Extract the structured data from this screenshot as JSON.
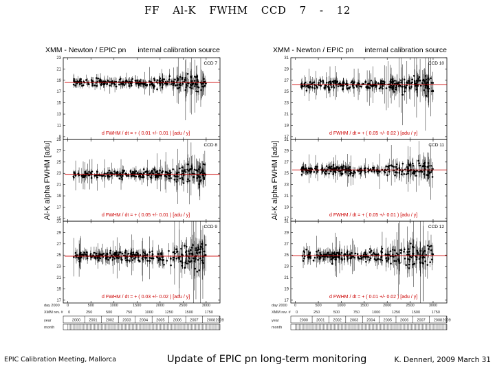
{
  "slide": {
    "title": "FF Al-K FWHM CCD 7 - 12",
    "footer_left": "EPIC Calibration Meeting, Mallorca",
    "footer_center": "Update of EPIC pn long-term monitoring",
    "footer_right": "K. Dennerl, 2009 March 31"
  },
  "colors": {
    "fit_line": "#cc0000",
    "data": "#000000"
  },
  "chart_data": [
    {
      "type": "scatter",
      "title_left": "XMM - Newton / EPIC pn",
      "title_right": "internal calibration source",
      "ylabel": "Al-K alpha FWHM [adu]",
      "xlim": [
        -100,
        3300
      ],
      "x_ticks": [
        "0",
        "500",
        "1000",
        "1500",
        "2000",
        "2500",
        "3000"
      ],
      "x_axis_label": "day 2000",
      "revolution_row_label": "XMM rev. #",
      "revolutions": [
        "0",
        "250",
        "500",
        "750",
        "1000",
        "1250",
        "1500",
        "1750"
      ],
      "year_row_label": "year",
      "years": [
        "2000",
        "2001",
        "2002",
        "2003",
        "2004",
        "2005",
        "2006",
        "2007",
        "2008",
        "2009"
      ],
      "month_row_label": "month",
      "panels": [
        {
          "ccd_label": "CCD 7",
          "y_ticks": [
            "23",
            "21",
            "19",
            "17",
            "15",
            "13",
            "11",
            "9"
          ],
          "ylim": [
            8.5,
            23
          ],
          "fit_level": 18.6,
          "fit_text": "d FWHM / dt = + ( 0.01 +/- 0.01 ) [adu / y]",
          "scatter_sigma": 0.9
        },
        {
          "ccd_label": "CCD 8",
          "y_ticks": [
            "29",
            "27",
            "25",
            "23",
            "21",
            "19",
            "17",
            "15"
          ],
          "ylim": [
            14.5,
            29
          ],
          "fit_level": 22.8,
          "fit_text": "d FWHM / dt = + ( 0.05 +/- 0.01 ) [adu / y]",
          "scatter_sigma": 1.0
        },
        {
          "ccd_label": "CCD 9",
          "y_ticks": [
            "31",
            "29",
            "27",
            "25",
            "23",
            "21",
            "19",
            "17"
          ],
          "ylim": [
            16.5,
            31
          ],
          "fit_level": 24.8,
          "fit_text": "d FWHM / dt = + ( 0.03 +/- 0.02 ) [adu / y]",
          "scatter_sigma": 1.3
        }
      ]
    },
    {
      "type": "scatter",
      "title_left": "XMM - Newton / EPIC pn",
      "title_right": "internal calibration source",
      "ylabel": "Al-K alpha FWHM [adu]",
      "xlim": [
        -100,
        3300
      ],
      "x_ticks": [
        "0",
        "500",
        "1000",
        "1500",
        "2000",
        "2500",
        "3000"
      ],
      "x_axis_label": "day 2000",
      "revolution_row_label": "XMM rev. #",
      "revolutions": [
        "0",
        "250",
        "500",
        "750",
        "1000",
        "1250",
        "1500",
        "1750"
      ],
      "year_row_label": "year",
      "years": [
        "2000",
        "2001",
        "2002",
        "2003",
        "2004",
        "2005",
        "2006",
        "2007",
        "2008",
        "2009"
      ],
      "month_row_label": "month",
      "panels": [
        {
          "ccd_label": "CCD 10",
          "y_ticks": [
            "31",
            "29",
            "27",
            "25",
            "23",
            "21",
            "19",
            "17"
          ],
          "ylim": [
            16.5,
            31
          ],
          "fit_level": 26.2,
          "fit_text": "d FWHM / dt = + ( 0.05 +/- 0.02 ) [adu / y]",
          "scatter_sigma": 1.1
        },
        {
          "ccd_label": "CCD 11",
          "y_ticks": [
            "31",
            "29",
            "27",
            "25",
            "23",
            "21",
            "19",
            "17"
          ],
          "ylim": [
            16.5,
            31
          ],
          "fit_level": 25.6,
          "fit_text": "d FWHM / dt = + ( 0.05 +/- 0.01 ) [adu / y]",
          "scatter_sigma": 1.0
        },
        {
          "ccd_label": "CCD 12",
          "y_ticks": [
            "31",
            "29",
            "27",
            "25",
            "23",
            "21",
            "19",
            "17"
          ],
          "ylim": [
            16.5,
            31
          ],
          "fit_level": 24.9,
          "fit_text": "d FWHM / dt = + ( 0.01 +/- 0.02 ) [adu / y]",
          "scatter_sigma": 1.3
        }
      ]
    }
  ]
}
